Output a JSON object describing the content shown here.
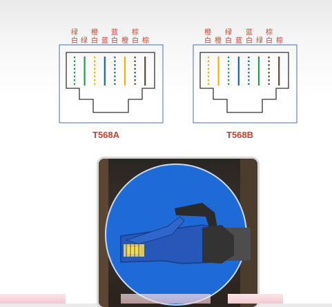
{
  "t568a": {
    "title": "T568A",
    "top_labels": [
      "绿",
      "橙",
      "蓝",
      "棕"
    ],
    "bottom_labels": [
      "白",
      "绿",
      "白",
      "蓝",
      "白",
      "橙",
      "白",
      "棕"
    ],
    "wires": [
      {
        "color": "#1f9e4a",
        "striped": true
      },
      {
        "color": "#1f9e4a",
        "striped": false
      },
      {
        "color": "#f0b400",
        "striped": true
      },
      {
        "color": "#1565c0",
        "striped": false
      },
      {
        "color": "#1565c0",
        "striped": true
      },
      {
        "color": "#f0b400",
        "striped": false
      },
      {
        "color": "#5a4a3a",
        "striped": true
      },
      {
        "color": "#5a4a3a",
        "striped": false
      }
    ]
  },
  "t568b": {
    "title": "T568B",
    "top_labels": [
      "橙",
      "绿",
      "蓝",
      "棕"
    ],
    "bottom_labels": [
      "白",
      "橙",
      "白",
      "蓝",
      "白",
      "绿",
      "白",
      "棕"
    ],
    "wires": [
      {
        "color": "#f0b400",
        "striped": true
      },
      {
        "color": "#f0b400",
        "striped": false
      },
      {
        "color": "#1f9e4a",
        "striped": true
      },
      {
        "color": "#1565c0",
        "striped": false
      },
      {
        "color": "#1565c0",
        "striped": true
      },
      {
        "color": "#1f9e4a",
        "striped": false
      },
      {
        "color": "#5a4a3a",
        "striped": true
      },
      {
        "color": "#5a4a3a",
        "striped": false
      }
    ]
  },
  "colors": {
    "label_text": "#c8402f",
    "connector_outline": "#333333",
    "frame_border": "#4a6fa5",
    "photo_circle": "#1e6ad6"
  }
}
